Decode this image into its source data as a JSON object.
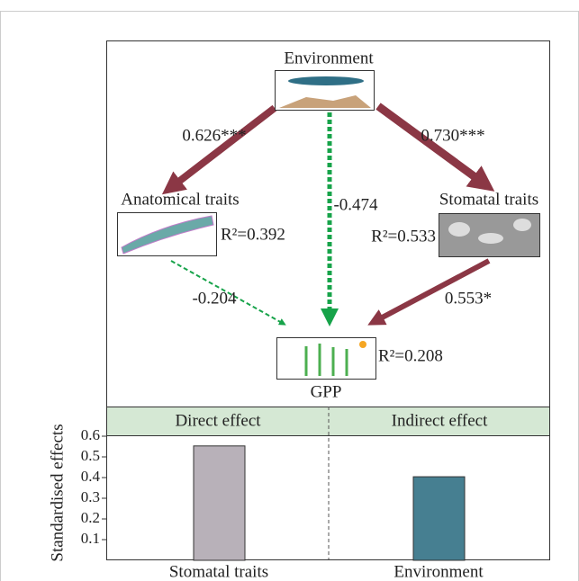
{
  "diagram": {
    "nodes": [
      {
        "label": "Environment"
      },
      {
        "label": "Anatomical traits",
        "r2": "R²=0.392"
      },
      {
        "label": "Stomatal traits",
        "r2": "R²=0.533"
      },
      {
        "label": "GPP",
        "r2": "R²=0.208"
      }
    ],
    "edges": [
      {
        "from": "Environment",
        "to": "Anatomical traits",
        "label": "0.626***"
      },
      {
        "from": "Environment",
        "to": "Stomatal traits",
        "label": "0.730***"
      },
      {
        "from": "Environment",
        "to": "GPP",
        "label": "-0.474"
      },
      {
        "from": "Anatomical traits",
        "to": "GPP",
        "label": "-0.204"
      },
      {
        "from": "Stomatal traits",
        "to": "GPP",
        "label": "0.553*"
      }
    ]
  },
  "chart_data": {
    "type": "bar",
    "y_label": "Standardised effects",
    "panels": [
      "Direct effect",
      "Indirect effect"
    ],
    "categories": [
      "Stomatal traits",
      "Environment"
    ],
    "values": [
      0.553,
      0.404
    ],
    "colors": [
      "#b8b1b9",
      "#467f91"
    ],
    "ylim": [
      0,
      0.6
    ],
    "yticks": [
      0.1,
      0.2,
      0.3,
      0.4,
      0.5,
      0.6
    ]
  }
}
